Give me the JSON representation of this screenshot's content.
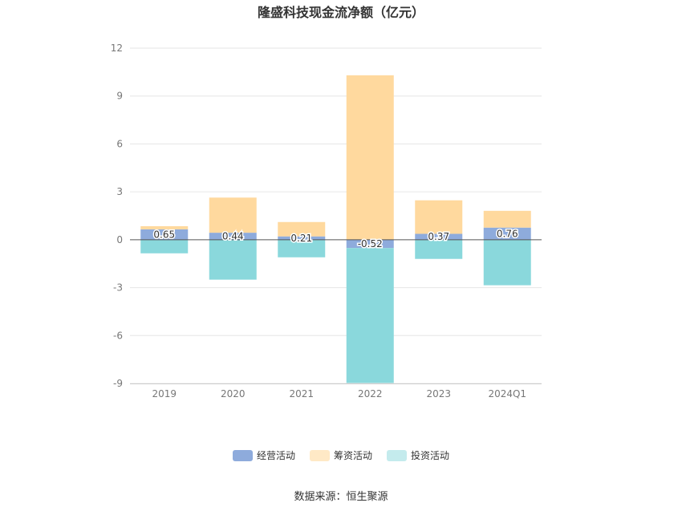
{
  "chart_data": {
    "type": "bar",
    "stacked": true,
    "title": "隆盛科技现金流净额（亿元）",
    "categories": [
      "2019",
      "2020",
      "2021",
      "2022",
      "2023",
      "2024Q1"
    ],
    "ylim": [
      -9,
      12
    ],
    "yticks": [
      12,
      9,
      6,
      3,
      0,
      -3,
      -6,
      -9
    ],
    "grid": true,
    "legend_position": "bottom",
    "series": [
      {
        "name": "经营活动",
        "color": "#8eabdc",
        "values": [
          0.65,
          0.44,
          0.21,
          -0.52,
          0.37,
          0.76
        ],
        "labels": [
          "0.65",
          "0.44",
          "0.21",
          "-0.52",
          "0.37",
          "0.76"
        ]
      },
      {
        "name": "筹资活动",
        "color": "#ffd99e",
        "values": [
          0.2,
          2.2,
          0.9,
          10.3,
          2.1,
          1.05
        ]
      },
      {
        "name": "投资活动",
        "color": "#8ad8dc",
        "values": [
          -0.85,
          -2.5,
          -1.1,
          -8.45,
          -1.2,
          -2.85
        ]
      }
    ],
    "legend_colors": [
      "#8eabdc",
      "#ffe9c6",
      "#c4ebed"
    ]
  },
  "source_note": "数据来源：恒生聚源"
}
